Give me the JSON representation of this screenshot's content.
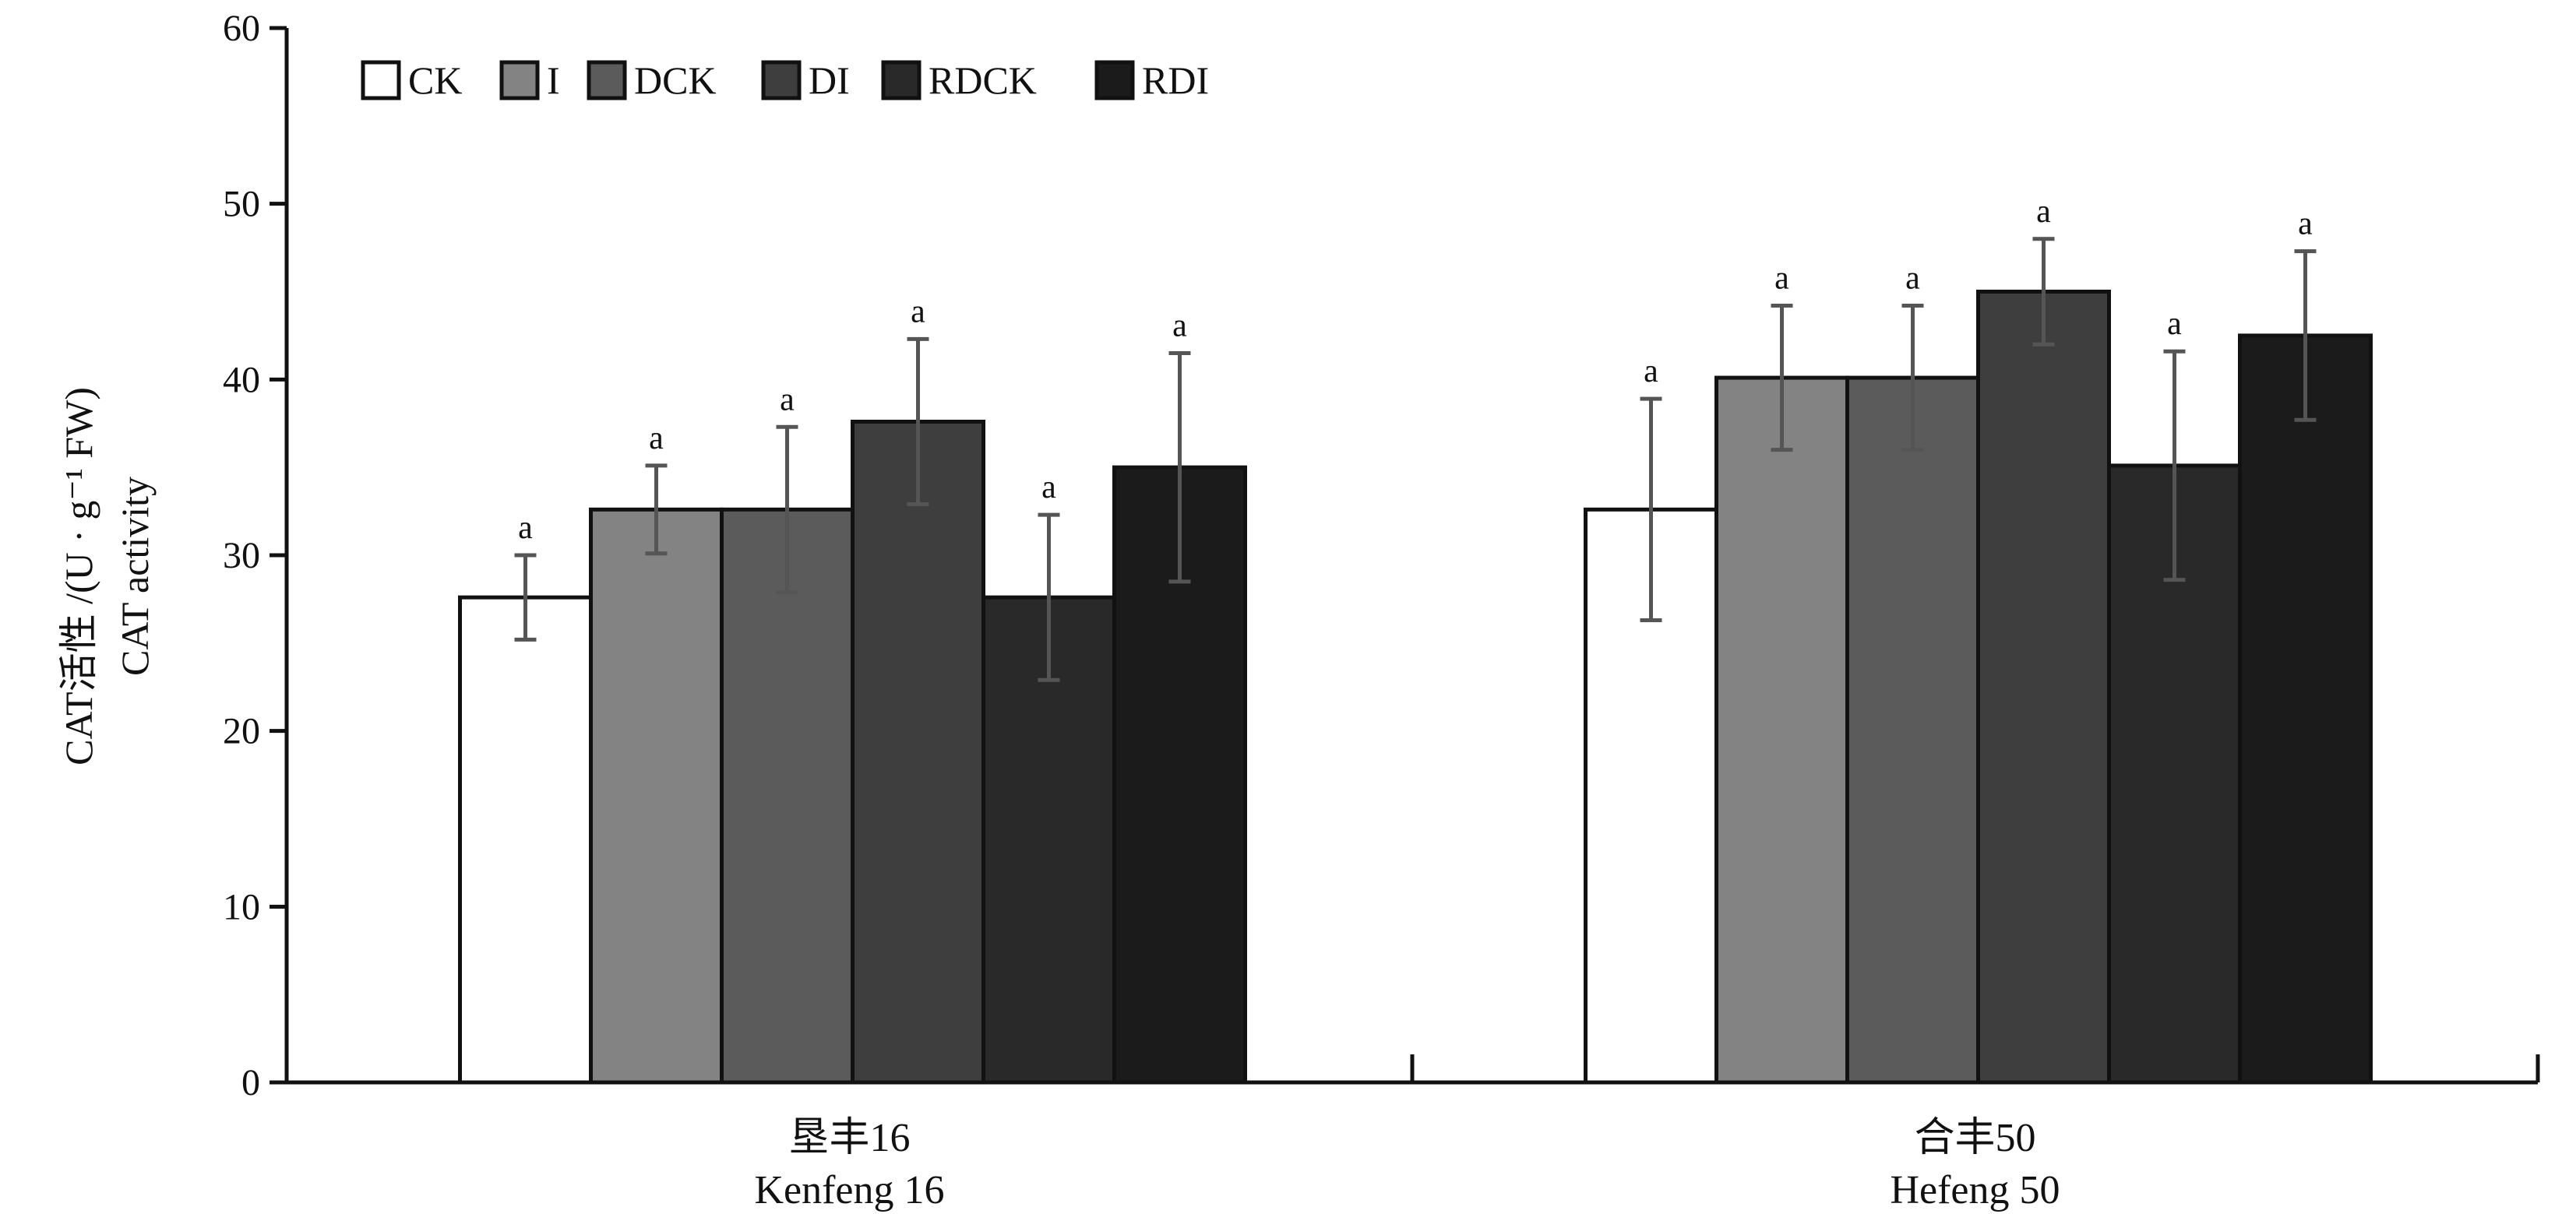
{
  "chart_data": {
    "type": "bar",
    "ylabel": "CAT活性 /(U · g⁻¹ FW)",
    "ylabel_en": "CAT activity",
    "ylim": [
      0,
      60
    ],
    "yticks": [
      "0",
      "10",
      "20",
      "30",
      "40",
      "50",
      "60"
    ],
    "ytick_values": [
      0,
      10,
      20,
      30,
      40,
      50,
      60
    ],
    "categories": [
      {
        "zh": "垦丰16",
        "en": "Kenfeng 16"
      },
      {
        "zh": "合丰50",
        "en": "Hefeng 50"
      }
    ],
    "legend_position": "top-left",
    "grid": false,
    "series": [
      {
        "name": "CK",
        "color": "#ffffff",
        "values": [
          27.6,
          32.6
        ],
        "errors": [
          2.4,
          6.3
        ],
        "labels": [
          "a",
          "a"
        ]
      },
      {
        "name": "I",
        "color": "#838383",
        "values": [
          32.6,
          40.1
        ],
        "errors": [
          2.5,
          4.1
        ],
        "labels": [
          "a",
          "a"
        ]
      },
      {
        "name": "DCK",
        "color": "#5b5b5b",
        "values": [
          32.6,
          40.1
        ],
        "errors": [
          4.7,
          4.1
        ],
        "labels": [
          "a",
          "a"
        ]
      },
      {
        "name": "DI",
        "color": "#3e3e3e",
        "values": [
          37.6,
          45.0
        ],
        "errors": [
          4.7,
          3.0
        ],
        "labels": [
          "a",
          "a"
        ]
      },
      {
        "name": "RDCK",
        "color": "#292929",
        "values": [
          27.6,
          35.1
        ],
        "errors": [
          4.7,
          6.5
        ],
        "labels": [
          "a",
          "a"
        ]
      },
      {
        "name": "RDI",
        "color": "#1b1b1b",
        "values": [
          35.0,
          42.5
        ],
        "errors": [
          6.5,
          4.8
        ],
        "labels": [
          "a",
          "a"
        ]
      }
    ]
  }
}
